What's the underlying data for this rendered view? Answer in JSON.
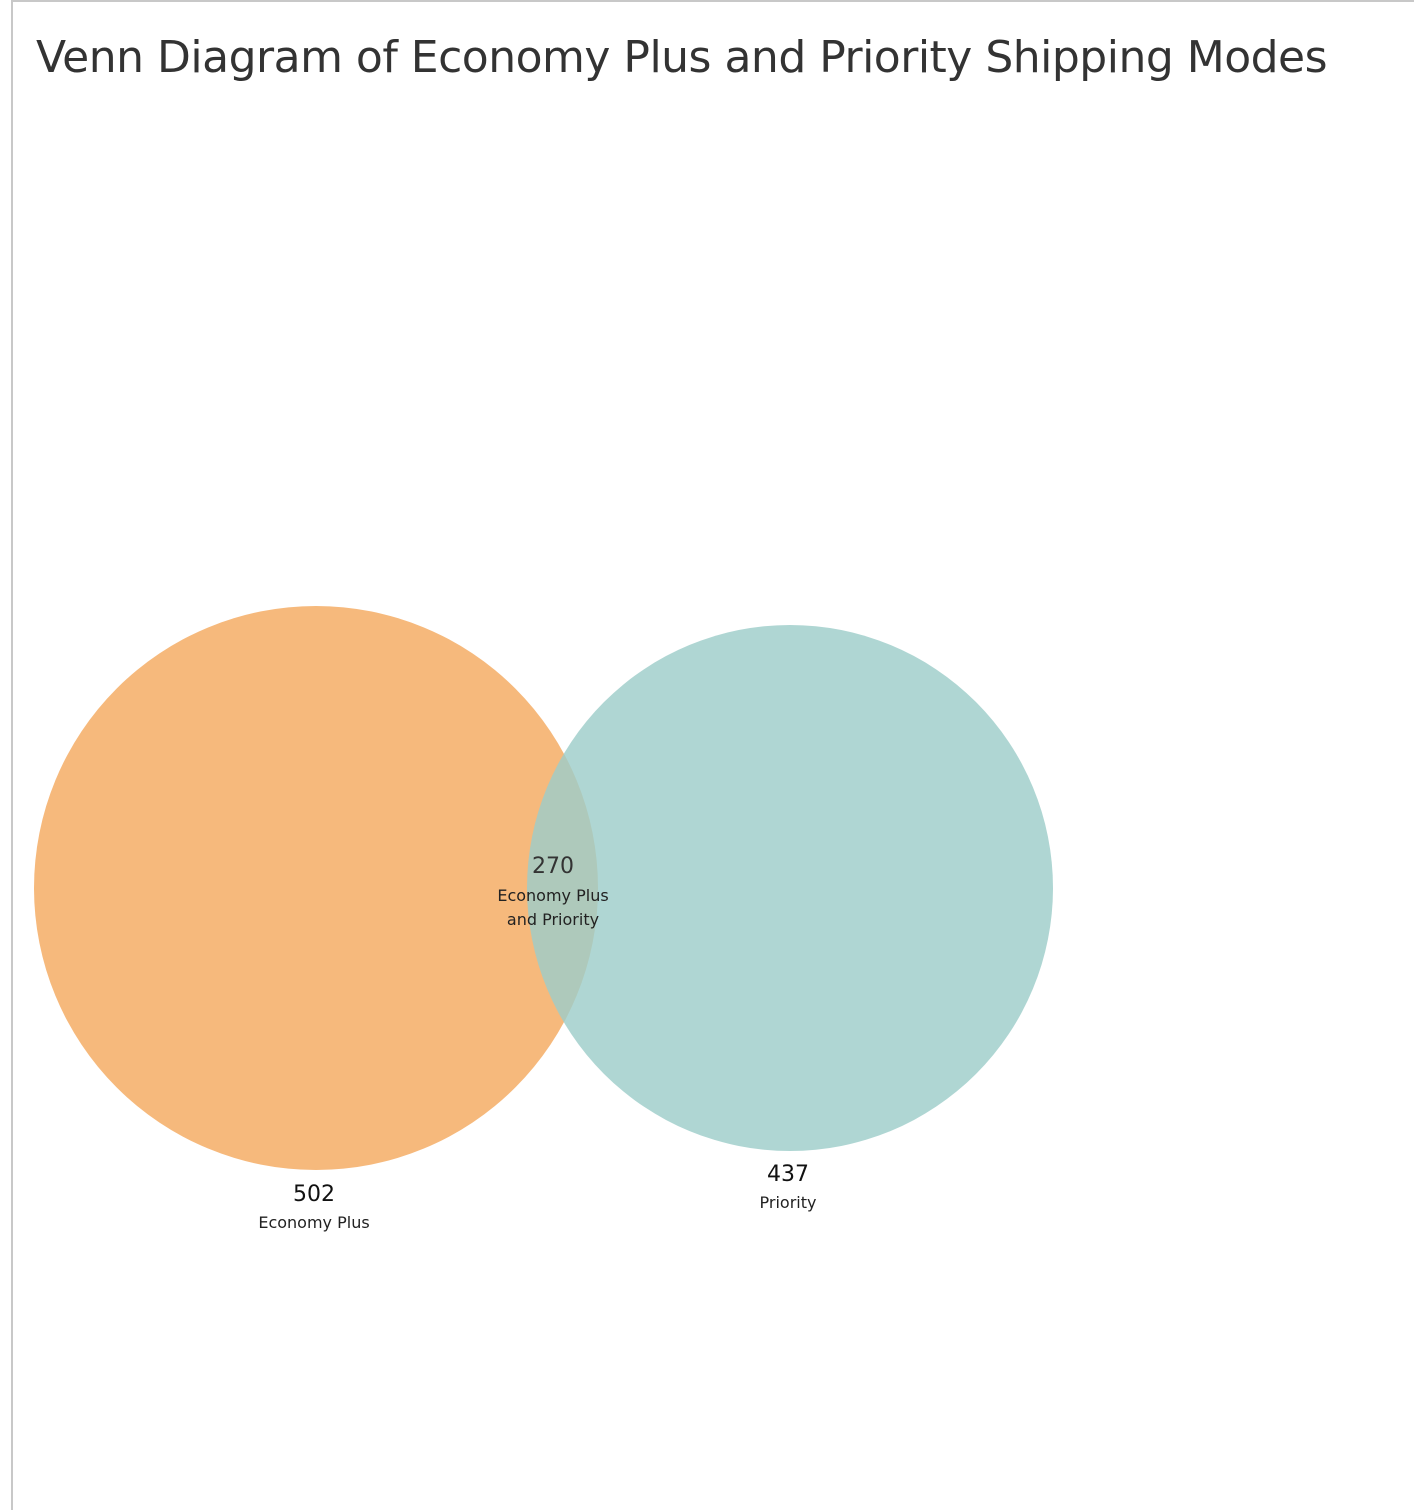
{
  "title": "Venn Diagram of Economy Plus and Priority Shipping Modes",
  "sets": [
    {
      "id": "economy-plus",
      "count": "502",
      "label": "Economy Plus",
      "color": "#f4a95f"
    },
    {
      "id": "priority",
      "count": "437",
      "label": "Priority",
      "color": "#9ecdc9"
    }
  ],
  "intersection": {
    "count": "270",
    "label_line1": "Economy Plus",
    "label_line2": "and Priority"
  }
}
